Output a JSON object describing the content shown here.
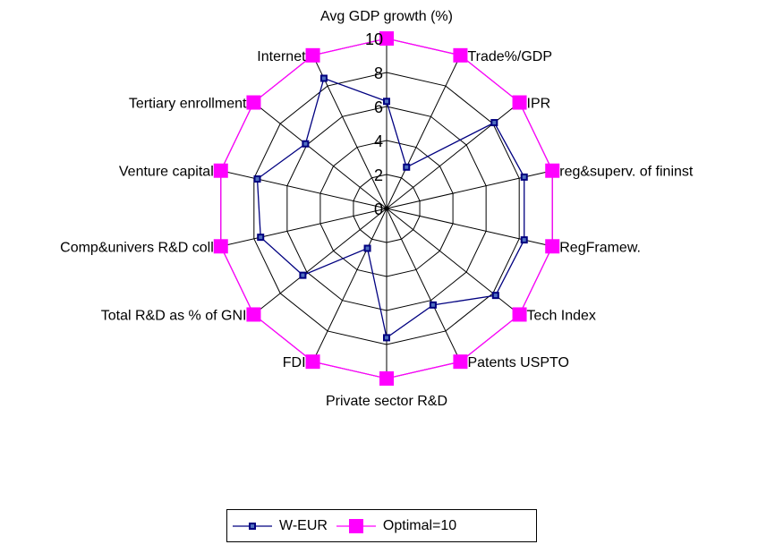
{
  "chart_data": {
    "type": "radar",
    "categories": [
      "Avg GDP growth (%)",
      "Trade%/GDP",
      "IPR",
      "reg&superv. of fininst",
      "RegFramew.",
      "Tech Index",
      "Patents USPTO",
      "Private sector R&D",
      "FDI",
      "Total R&D as % of GNI",
      "Comp&univers R&D coll",
      "Venture capital",
      "Tertiary enrollment",
      "Internet"
    ],
    "rlim": [
      0,
      10
    ],
    "ticks": [
      "0",
      "2",
      "4",
      "6",
      "8",
      "10"
    ],
    "tick_values": [
      0,
      2,
      4,
      6,
      8,
      10
    ],
    "series": [
      {
        "name": "W-EUR",
        "color": "#000080",
        "values": [
          6.3,
          2.7,
          8.1,
          8.3,
          8.3,
          8.2,
          6.3,
          7.6,
          2.6,
          6.3,
          7.6,
          7.8,
          6.1,
          8.5
        ]
      },
      {
        "name": "Optimal=10",
        "color": "#FF00FF",
        "values": [
          10,
          10,
          10,
          10,
          10,
          10,
          10,
          10,
          10,
          10,
          10,
          10,
          10,
          10
        ]
      }
    ],
    "grid": true,
    "legend_position": "bottom-center"
  }
}
